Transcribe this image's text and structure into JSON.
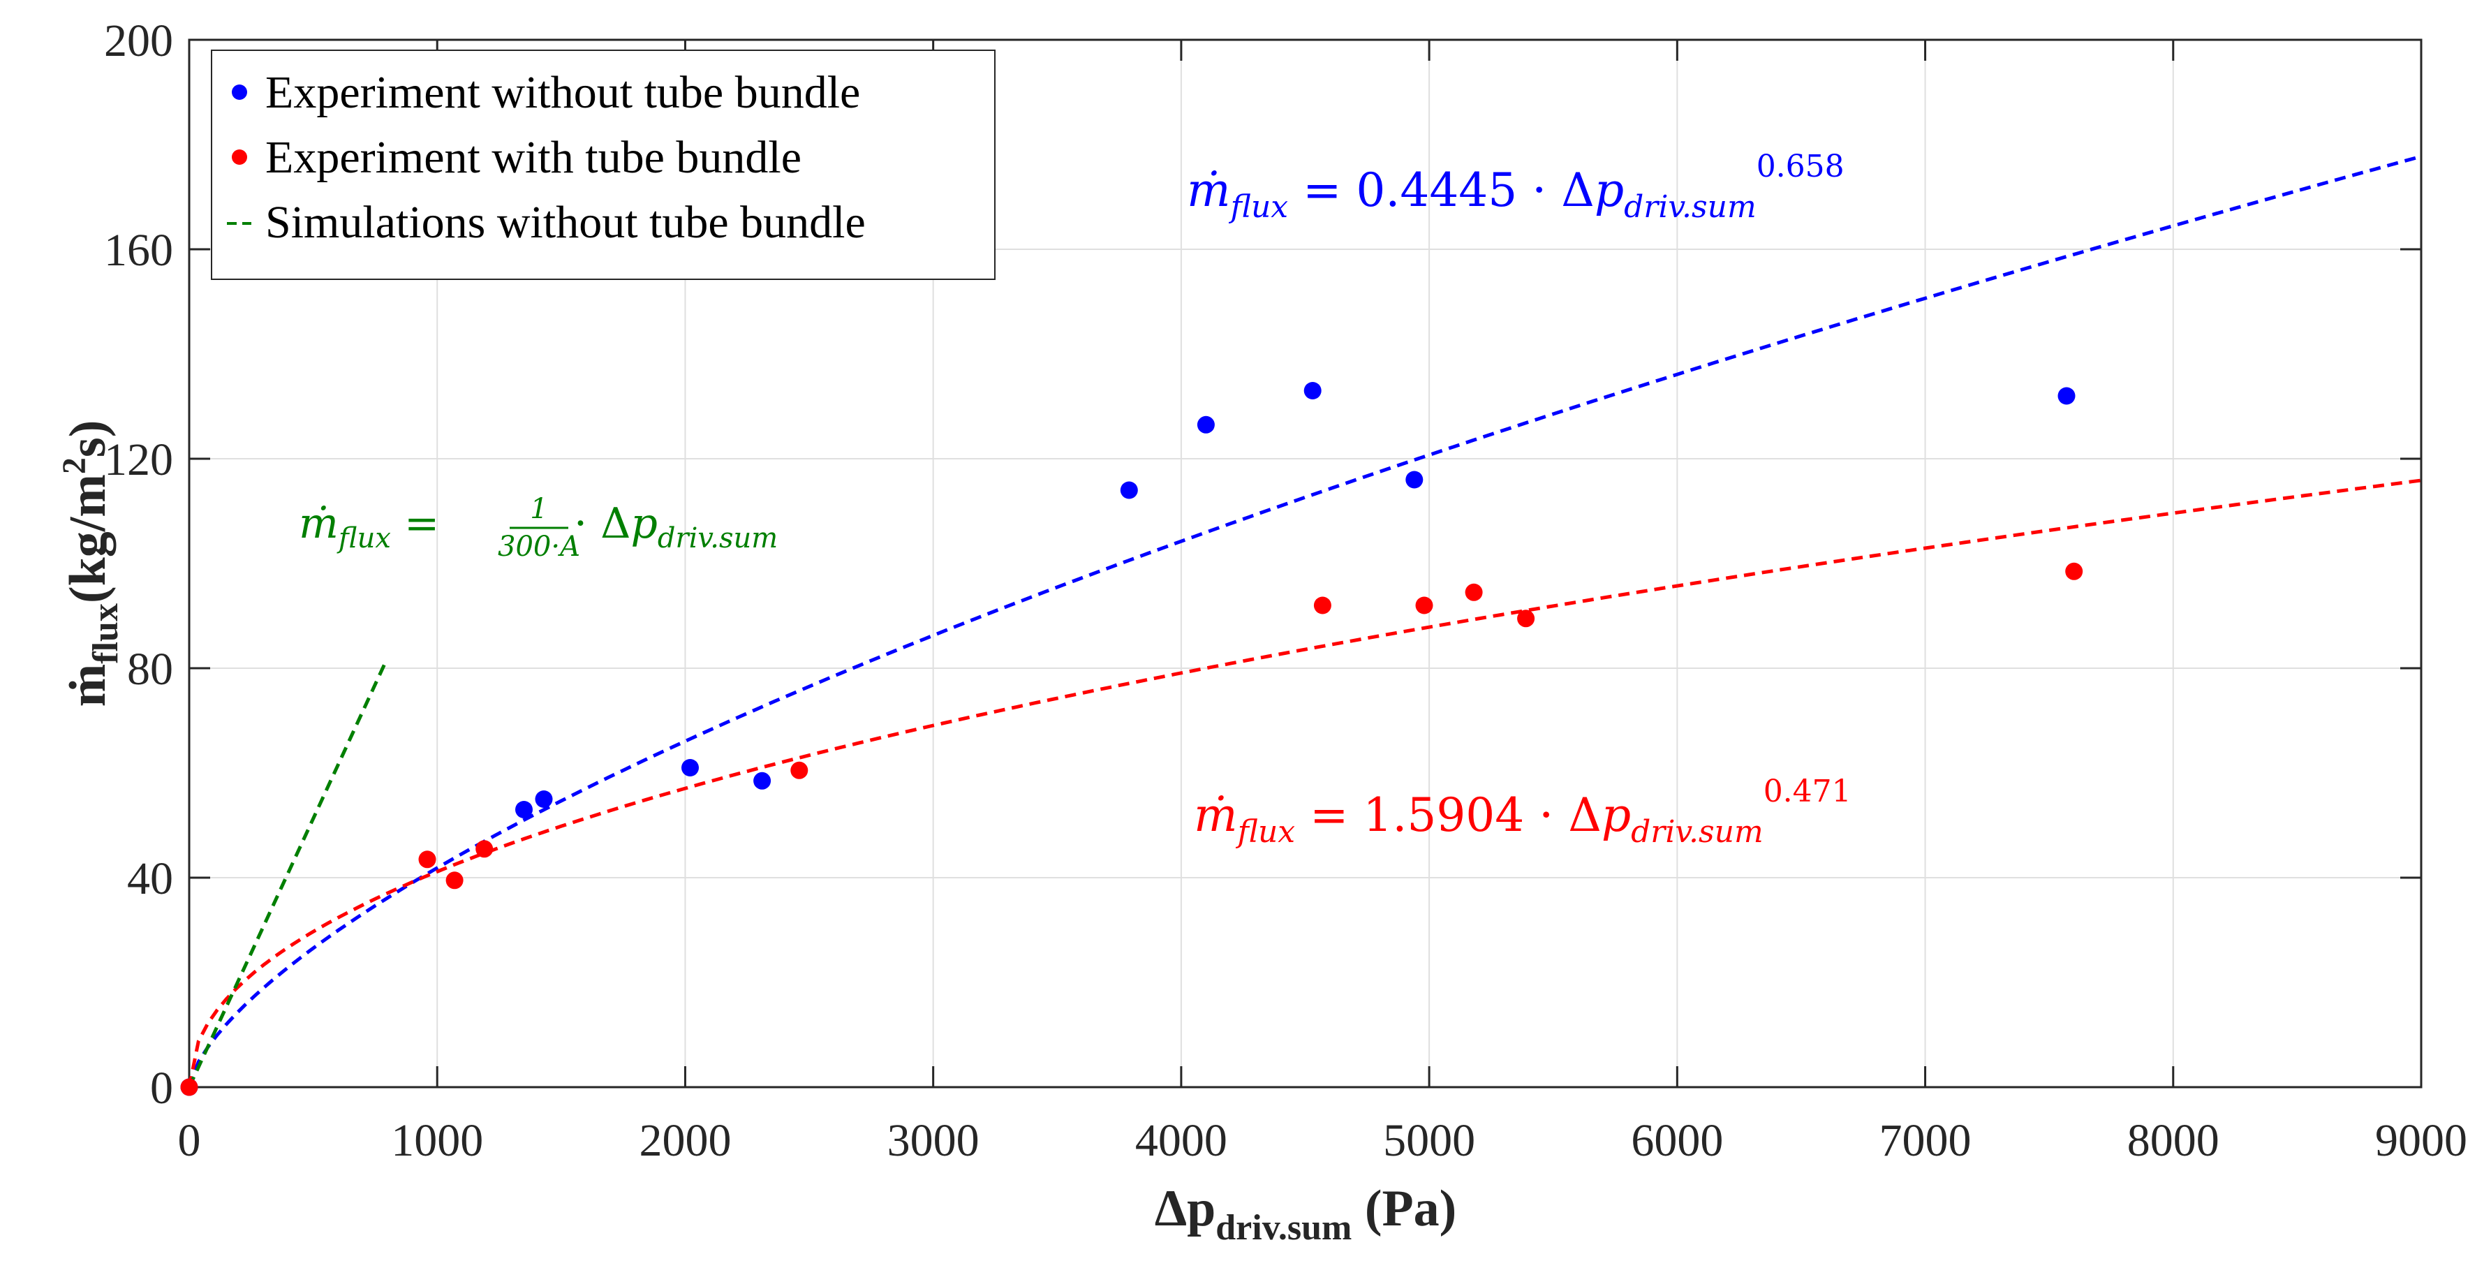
{
  "chart_data": {
    "type": "scatter",
    "xlabel": {
      "main": "Δp",
      "sub": "driv.sum",
      "unit": "(Pa)"
    },
    "ylabel": {
      "main": "ṁ",
      "sub": "flux",
      "unit_pre": "(kg/m",
      "unit_sup": "2",
      "unit_post": "s)"
    },
    "xlim": [
      0,
      9000
    ],
    "ylim": [
      0,
      200
    ],
    "xticks": [
      0,
      1000,
      2000,
      3000,
      4000,
      5000,
      6000,
      7000,
      8000,
      9000
    ],
    "yticks": [
      0,
      40,
      80,
      120,
      160,
      200
    ],
    "grid": true,
    "legend_position": "top-left",
    "legend": [
      {
        "label": "Experiment without tube bundle",
        "marker": "dot",
        "color": "#0000ff"
      },
      {
        "label": "Experiment with tube bundle",
        "marker": "dot",
        "color": "#ff0000"
      },
      {
        "label": "Simulations without tube bundle",
        "marker": "dash",
        "color": "#007f00"
      }
    ],
    "series": [
      {
        "name": "Experiment without tube bundle",
        "kind": "scatter",
        "color": "#0000ff",
        "points": [
          [
            0,
            0
          ],
          [
            1350,
            53
          ],
          [
            1430,
            55
          ],
          [
            2020,
            61
          ],
          [
            2310,
            58.5
          ],
          [
            3790,
            114
          ],
          [
            4100,
            126.5
          ],
          [
            4530,
            133
          ],
          [
            4940,
            116
          ],
          [
            7570,
            132
          ]
        ]
      },
      {
        "name": "Experiment with tube bundle",
        "kind": "scatter",
        "color": "#ff0000",
        "points": [
          [
            0,
            0
          ],
          [
            960,
            43.5
          ],
          [
            1070,
            39.5
          ],
          [
            1190,
            45.5
          ],
          [
            2460,
            60.5
          ],
          [
            4570,
            92
          ],
          [
            4980,
            92
          ],
          [
            5180,
            94.5
          ],
          [
            5390,
            89.5
          ],
          [
            7600,
            98.5
          ]
        ]
      },
      {
        "name": "Fit without tube bundle",
        "kind": "power_fit",
        "color": "#0000ff",
        "coef": 0.4445,
        "exponent": 0.658,
        "x_range": [
          0,
          9000
        ]
      },
      {
        "name": "Fit with tube bundle",
        "kind": "power_fit",
        "color": "#ff0000",
        "coef": 1.5904,
        "exponent": 0.471,
        "x_range": [
          0,
          9000
        ]
      },
      {
        "name": "Simulations without tube bundle",
        "kind": "line",
        "color": "#007f00",
        "points": [
          [
            0,
            0
          ],
          [
            790,
            81
          ]
        ]
      }
    ],
    "annotations": {
      "blue_eq": {
        "lhs": "ṁ",
        "lhs_sub": "flux",
        "eq": " = 0.4445 · Δ",
        "p": "p",
        "p_sub": "driv.sum",
        "exp": "0.658",
        "color": "#0000ff"
      },
      "red_eq": {
        "lhs": "ṁ",
        "lhs_sub": "flux",
        "eq": " = 1.5904 · Δ",
        "p": "p",
        "p_sub": "driv.sum",
        "exp": "0.471",
        "color": "#ff0000"
      },
      "green_eq": {
        "lhs": "ṁ",
        "lhs_sub": "flux",
        "eq": " = ",
        "num": "1",
        "den": "300·A",
        "rhs": " · Δ",
        "p": "p",
        "p_sub": "driv.sum",
        "color": "#007f00"
      }
    }
  }
}
